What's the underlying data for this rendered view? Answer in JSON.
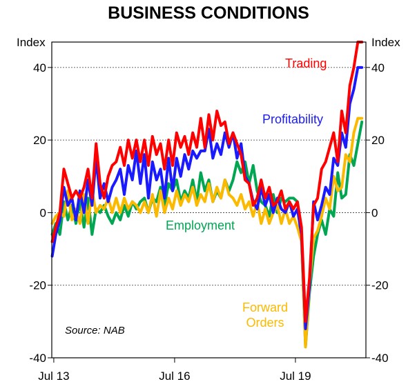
{
  "chart_data": {
    "type": "line",
    "title": "BUSINESS CONDITIONS",
    "ylabel_left": "Index",
    "ylabel_right": "Index",
    "ylim": [
      -40,
      47
    ],
    "yticks": [
      -40,
      -20,
      0,
      20,
      40
    ],
    "ytick_labels": [
      "-40",
      "-20",
      "0",
      "20",
      "40"
    ],
    "xlim": [
      2013.45,
      2021.25
    ],
    "xticks": [
      {
        "value": 2013.5,
        "label": "Jul 13"
      },
      {
        "value": 2016.5,
        "label": "Jul 16"
      },
      {
        "value": 2019.5,
        "label": "Jul 19"
      }
    ],
    "grid": "horizontal dotted",
    "source": "Source: NAB",
    "series": [
      {
        "name": "Employment",
        "label": "Employment",
        "color": "#00a651",
        "x": [
          2013.46,
          2013.55,
          2013.65,
          2013.75,
          2013.85,
          2013.95,
          2014.05,
          2014.15,
          2014.25,
          2014.35,
          2014.45,
          2014.55,
          2014.65,
          2014.75,
          2014.85,
          2014.95,
          2015.05,
          2015.15,
          2015.25,
          2015.35,
          2015.45,
          2015.55,
          2015.65,
          2015.75,
          2015.85,
          2015.95,
          2016.05,
          2016.15,
          2016.25,
          2016.35,
          2016.45,
          2016.55,
          2016.65,
          2016.75,
          2016.85,
          2016.95,
          2017.05,
          2017.15,
          2017.25,
          2017.35,
          2017.45,
          2017.55,
          2017.65,
          2017.75,
          2017.85,
          2017.95,
          2018.05,
          2018.15,
          2018.25,
          2018.35,
          2018.45,
          2018.55,
          2018.65,
          2018.75,
          2018.85,
          2018.95,
          2019.05,
          2019.15,
          2019.25,
          2019.35,
          2019.45,
          2019.55,
          2019.65,
          2019.75,
          2019.85,
          2019.95,
          2020.05,
          2020.15,
          2020.25,
          2020.35,
          2020.45,
          2020.55,
          2020.65,
          2020.75,
          2020.85,
          2020.95,
          2021.05,
          2021.15
        ],
        "values": [
          -6,
          -3,
          -6,
          3,
          -2,
          2,
          -3,
          3,
          -4,
          4,
          -6,
          1,
          0,
          2,
          -1,
          -3,
          0,
          -2,
          2,
          -1,
          3,
          1,
          3,
          4,
          0,
          4,
          3,
          7,
          2,
          8,
          6,
          9,
          3,
          6,
          4,
          9,
          3,
          11,
          6,
          9,
          3,
          6,
          4,
          9,
          6,
          9,
          14,
          11,
          14,
          8,
          13,
          6,
          3,
          2,
          -1,
          5,
          0,
          4,
          3,
          4,
          4,
          3,
          -8,
          -37,
          -22,
          -12,
          -6,
          -2,
          -6,
          1,
          -1,
          11,
          4,
          5,
          16,
          13,
          19,
          25
        ]
      },
      {
        "name": "Forward Orders",
        "label_line1": "Forward",
        "label_line2": "Orders",
        "color": "#fbb900",
        "x": [
          2013.46,
          2013.55,
          2013.65,
          2013.75,
          2013.85,
          2013.95,
          2014.05,
          2014.15,
          2014.25,
          2014.35,
          2014.45,
          2014.55,
          2014.65,
          2014.75,
          2014.85,
          2014.95,
          2015.05,
          2015.15,
          2015.25,
          2015.35,
          2015.45,
          2015.55,
          2015.65,
          2015.75,
          2015.85,
          2015.95,
          2016.05,
          2016.15,
          2016.25,
          2016.35,
          2016.45,
          2016.55,
          2016.65,
          2016.75,
          2016.85,
          2016.95,
          2017.05,
          2017.15,
          2017.25,
          2017.35,
          2017.45,
          2017.55,
          2017.65,
          2017.75,
          2017.85,
          2017.95,
          2018.05,
          2018.15,
          2018.25,
          2018.35,
          2018.45,
          2018.55,
          2018.65,
          2018.75,
          2018.85,
          2018.95,
          2019.05,
          2019.15,
          2019.25,
          2019.35,
          2019.45,
          2019.55,
          2019.65,
          2019.75,
          2019.85,
          2019.95,
          2020.05,
          2020.15,
          2020.25,
          2020.35,
          2020.45,
          2020.55,
          2020.65,
          2020.75,
          2020.85,
          2020.95,
          2021.05,
          2021.15
        ],
        "values": [
          -3,
          -1,
          0,
          -1,
          6,
          -2,
          1,
          -3,
          5,
          -3,
          6,
          0,
          2,
          1,
          4,
          0,
          4,
          0,
          4,
          1,
          3,
          2,
          0,
          3,
          0,
          5,
          -1,
          6,
          0,
          4,
          1,
          6,
          2,
          5,
          3,
          7,
          2,
          5,
          3,
          8,
          3,
          7,
          4,
          9,
          5,
          4,
          2,
          5,
          1,
          3,
          -1,
          3,
          -3,
          1,
          -3,
          0,
          2,
          -3,
          1,
          -3,
          -1,
          -4,
          -8,
          -37,
          -20,
          -7,
          -5,
          -1,
          4,
          1,
          10,
          6,
          7,
          16,
          14,
          22,
          26,
          26
        ]
      },
      {
        "name": "Profitability",
        "label": "Profitability",
        "color": "#1a1aff",
        "x": [
          2013.46,
          2013.55,
          2013.65,
          2013.75,
          2013.85,
          2013.95,
          2014.05,
          2014.15,
          2014.25,
          2014.35,
          2014.45,
          2014.55,
          2014.65,
          2014.75,
          2014.85,
          2014.95,
          2015.05,
          2015.15,
          2015.25,
          2015.35,
          2015.45,
          2015.55,
          2015.65,
          2015.75,
          2015.85,
          2015.95,
          2016.05,
          2016.15,
          2016.25,
          2016.35,
          2016.45,
          2016.55,
          2016.65,
          2016.75,
          2016.85,
          2016.95,
          2017.05,
          2017.15,
          2017.25,
          2017.35,
          2017.45,
          2017.55,
          2017.65,
          2017.75,
          2017.85,
          2017.95,
          2018.05,
          2018.15,
          2018.25,
          2018.35,
          2018.45,
          2018.55,
          2018.65,
          2018.75,
          2018.85,
          2018.95,
          2019.05,
          2019.15,
          2019.25,
          2019.35,
          2019.45,
          2019.55,
          2019.65,
          2019.75,
          2019.85,
          2019.95,
          2020.05,
          2020.15,
          2020.25,
          2020.35,
          2020.45,
          2020.55,
          2020.65,
          2020.75,
          2020.85,
          2020.95,
          2021.05,
          2021.15
        ],
        "values": [
          -12,
          -6,
          -2,
          7,
          2,
          4,
          -2,
          6,
          0,
          9,
          2,
          15,
          4,
          8,
          3,
          7,
          9,
          12,
          5,
          13,
          9,
          17,
          8,
          16,
          4,
          14,
          9,
          12,
          4,
          15,
          6,
          15,
          10,
          16,
          12,
          17,
          15,
          17,
          17,
          23,
          15,
          19,
          16,
          22,
          18,
          22,
          15,
          19,
          10,
          8,
          3,
          1,
          7,
          2,
          5,
          0,
          4,
          1,
          0,
          3,
          -1,
          1,
          -6,
          -32,
          -20,
          3,
          -2,
          2,
          7,
          5,
          15,
          13,
          22,
          18,
          30,
          34,
          40,
          40
        ]
      },
      {
        "name": "Trading",
        "label": "Trading",
        "color": "#ff0000",
        "x": [
          2013.46,
          2013.55,
          2013.65,
          2013.75,
          2013.85,
          2013.95,
          2014.05,
          2014.15,
          2014.25,
          2014.35,
          2014.45,
          2014.55,
          2014.65,
          2014.75,
          2014.85,
          2014.95,
          2015.05,
          2015.15,
          2015.25,
          2015.35,
          2015.45,
          2015.55,
          2015.65,
          2015.75,
          2015.85,
          2015.95,
          2016.05,
          2016.15,
          2016.25,
          2016.35,
          2016.45,
          2016.55,
          2016.65,
          2016.75,
          2016.85,
          2016.95,
          2017.05,
          2017.15,
          2017.25,
          2017.35,
          2017.45,
          2017.55,
          2017.65,
          2017.75,
          2017.85,
          2017.95,
          2018.05,
          2018.15,
          2018.25,
          2018.35,
          2018.45,
          2018.55,
          2018.65,
          2018.75,
          2018.85,
          2018.95,
          2019.05,
          2019.15,
          2019.25,
          2019.35,
          2019.45,
          2019.55,
          2019.65,
          2019.75,
          2019.85,
          2019.95,
          2020.05,
          2020.15,
          2020.25,
          2020.35,
          2020.45,
          2020.55,
          2020.65,
          2020.75,
          2020.85,
          2020.95,
          2021.05,
          2021.15
        ],
        "values": [
          -8,
          -4,
          0,
          12,
          8,
          4,
          6,
          4,
          7,
          12,
          4,
          19,
          8,
          4,
          10,
          13,
          14,
          18,
          13,
          20,
          15,
          20,
          14,
          20,
          13,
          21,
          16,
          19,
          12,
          20,
          13,
          22,
          18,
          21,
          16,
          22,
          18,
          26,
          18,
          27,
          20,
          28,
          24,
          25,
          19,
          22,
          19,
          16,
          9,
          8,
          2,
          4,
          9,
          4,
          7,
          2,
          3,
          6,
          1,
          3,
          1,
          3,
          -4,
          -30,
          -18,
          2,
          4,
          12,
          14,
          18,
          22,
          14,
          28,
          22,
          35,
          40,
          47,
          47
        ]
      }
    ]
  }
}
